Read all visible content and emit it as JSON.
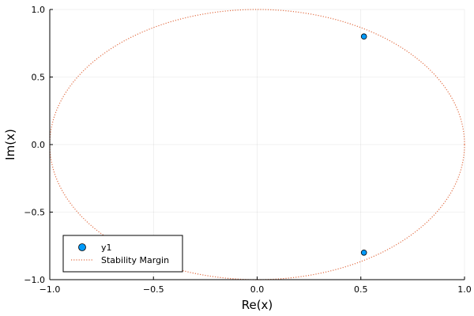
{
  "chart_data": {
    "type": "scatter",
    "xlabel": "Re(x)",
    "ylabel": "Im(x)",
    "xlim": [
      -1.0,
      1.0
    ],
    "ylim": [
      -1.0,
      1.0
    ],
    "grid": true,
    "legend_position": "bottom-left",
    "x_ticks": [
      -1.0,
      -0.5,
      0.0,
      0.5,
      1.0
    ],
    "x_tick_labels": [
      "−1.0",
      "−0.5",
      "0.0",
      "0.5",
      "1.0"
    ],
    "y_ticks": [
      -1.0,
      -0.5,
      0.0,
      0.5,
      1.0
    ],
    "y_tick_labels": [
      "−1.0",
      "−0.5",
      "0.0",
      "0.5",
      "1.0"
    ],
    "series": [
      {
        "name": "y1",
        "kind": "scatter",
        "color": "#009AFA",
        "points": [
          {
            "x": 0.515,
            "y": 0.8
          },
          {
            "x": 0.515,
            "y": -0.8
          }
        ]
      },
      {
        "name": "Stability Margin",
        "kind": "line",
        "style": "dotted",
        "color": "#E26F46",
        "shape": "unit-circle",
        "center": [
          0.0,
          0.0
        ],
        "radius": 1.0
      }
    ]
  }
}
